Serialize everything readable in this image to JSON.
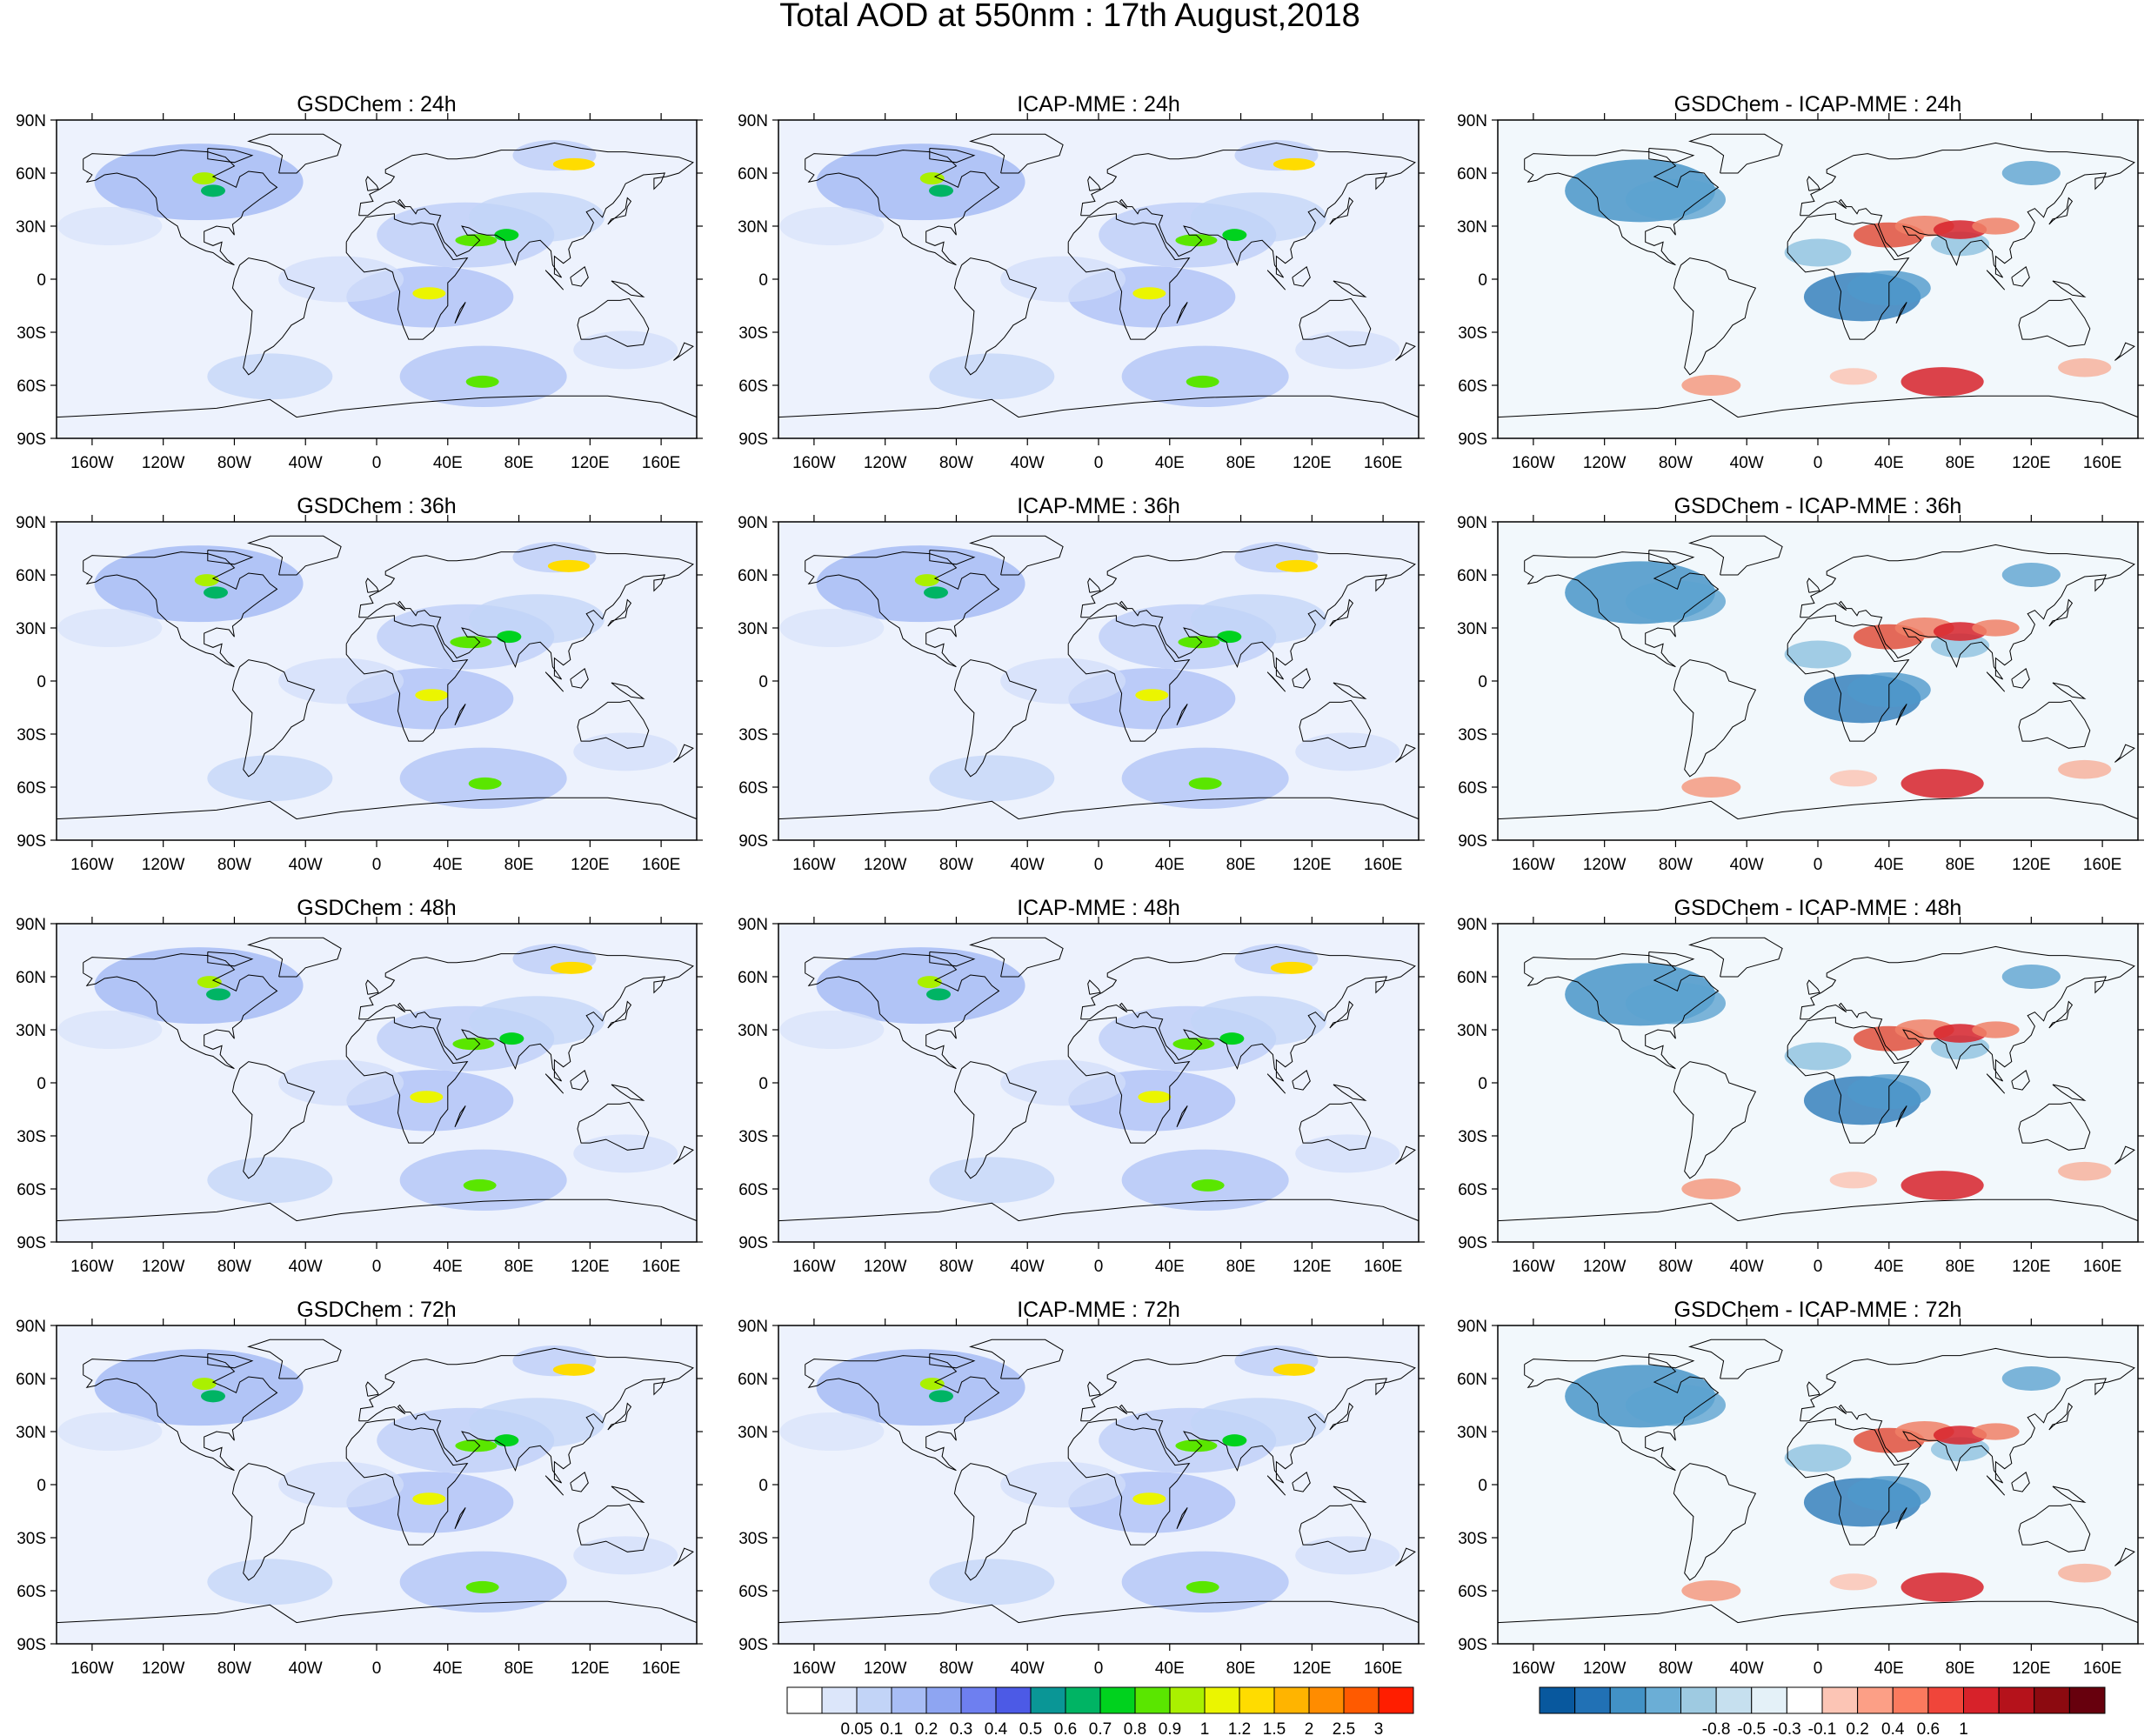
{
  "page": {
    "title": "Total AOD at 550nm : 17th August,2018"
  },
  "axes": {
    "lat_labels": [
      "90N",
      "60N",
      "30N",
      "0",
      "30S",
      "60S",
      "90S"
    ],
    "lon_labels": [
      "160W",
      "120W",
      "80W",
      "40W",
      "0",
      "40E",
      "80E",
      "120E",
      "160E"
    ]
  },
  "panels": [
    {
      "title": "GSDChem : 24h",
      "kind": "aod"
    },
    {
      "title": "ICAP-MME : 24h",
      "kind": "aod"
    },
    {
      "title": "GSDChem - ICAP-MME : 24h",
      "kind": "diff"
    },
    {
      "title": "GSDChem : 36h",
      "kind": "aod"
    },
    {
      "title": "ICAP-MME : 36h",
      "kind": "aod"
    },
    {
      "title": "GSDChem - ICAP-MME : 36h",
      "kind": "diff"
    },
    {
      "title": "GSDChem : 48h",
      "kind": "aod"
    },
    {
      "title": "ICAP-MME : 48h",
      "kind": "aod"
    },
    {
      "title": "GSDChem - ICAP-MME : 48h",
      "kind": "diff"
    },
    {
      "title": "GSDChem : 72h",
      "kind": "aod"
    },
    {
      "title": "ICAP-MME : 72h",
      "kind": "aod"
    },
    {
      "title": "GSDChem - ICAP-MME : 72h",
      "kind": "diff"
    }
  ],
  "colorbars": {
    "aod": {
      "colors": [
        "#ffffff",
        "#dce6fa",
        "#c2d4f7",
        "#a8bdf5",
        "#8ea5f2",
        "#6e7ff0",
        "#4c5ae6",
        "#0a9696",
        "#00b464",
        "#00d21e",
        "#5ae600",
        "#aaf000",
        "#ebf500",
        "#ffdc00",
        "#ffb400",
        "#ff8c00",
        "#ff5a00",
        "#ff1e00"
      ],
      "labels": [
        "0.05",
        "0.1",
        "0.2",
        "0.3",
        "0.4",
        "0.5",
        "0.6",
        "0.7",
        "0.8",
        "0.9",
        "1",
        "1.2",
        "1.5",
        "2",
        "2.5",
        "3"
      ]
    },
    "diff": {
      "colors": [
        "#08589e",
        "#2171b5",
        "#4292c6",
        "#6baed6",
        "#9ecae1",
        "#c6e0ef",
        "#e4f1f8",
        "#ffffff",
        "#fcc5b5",
        "#fc9f86",
        "#fb7a5e",
        "#f0453a",
        "#d7222a",
        "#b5121b",
        "#8c0a10",
        "#67000d"
      ],
      "labels": [
        "-0.8",
        "-0.5",
        "-0.3",
        "-0.1",
        "0.2",
        "0.4",
        "0.6",
        "1"
      ]
    }
  }
}
